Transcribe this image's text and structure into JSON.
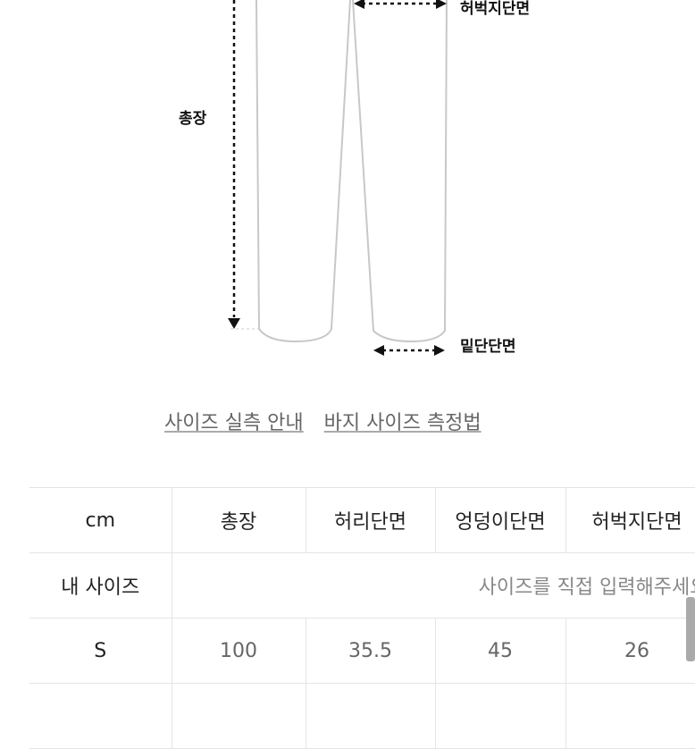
{
  "diagram": {
    "labels": {
      "total_length": "총장",
      "thigh": "허벅지단면",
      "hem": "밑단단면"
    }
  },
  "links": [
    "사이즈 실측 안내",
    "바지 사이즈 측정법"
  ],
  "table": {
    "headers": [
      "cm",
      "총장",
      "허리단면",
      "엉덩이단면",
      "허벅지단면"
    ],
    "my_size": {
      "label": "내 사이즈",
      "placeholder": "사이즈를 직접 입력해주세요"
    },
    "rows": [
      {
        "size": "S",
        "values": [
          "100",
          "35.5",
          "45",
          "26"
        ]
      }
    ]
  }
}
